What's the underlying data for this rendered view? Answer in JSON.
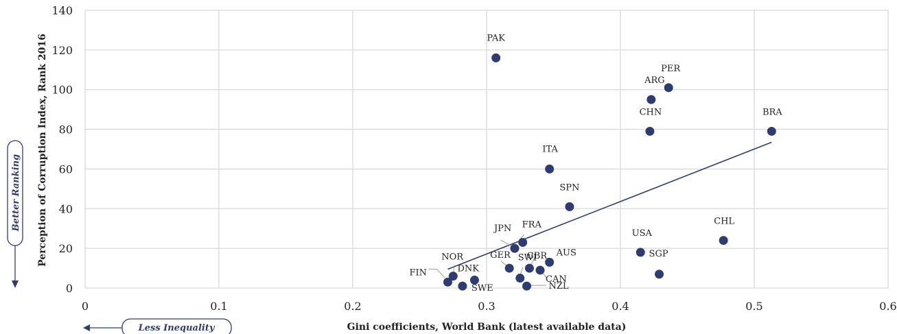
{
  "chart_data": {
    "type": "scatter",
    "xlabel": "Gini coefficients, World Bank (latest available data)",
    "ylabel": "Perception of Corruption Index, Rank 2016",
    "xlim": [
      0,
      0.6
    ],
    "ylim": [
      0,
      140
    ],
    "x_ticks": [
      "0",
      "0.1",
      "0.2",
      "0.3",
      "0.4",
      "0.5",
      "0.6"
    ],
    "y_ticks": [
      "0",
      "20",
      "40",
      "60",
      "80",
      "100",
      "120",
      "140"
    ],
    "grid": true,
    "legend": "none",
    "marker_color": "#2d3d74",
    "points": [
      {
        "label": "PAK",
        "x": 0.307,
        "y": 116
      },
      {
        "label": "PER",
        "x": 0.436,
        "y": 101
      },
      {
        "label": "ARG",
        "x": 0.423,
        "y": 95
      },
      {
        "label": "CHN",
        "x": 0.422,
        "y": 79
      },
      {
        "label": "BRA",
        "x": 0.513,
        "y": 79
      },
      {
        "label": "ITA",
        "x": 0.347,
        "y": 60
      },
      {
        "label": "SPN",
        "x": 0.362,
        "y": 41
      },
      {
        "label": "CHL",
        "x": 0.477,
        "y": 24
      },
      {
        "label": "FRA",
        "x": 0.327,
        "y": 23
      },
      {
        "label": "JPN",
        "x": 0.321,
        "y": 20
      },
      {
        "label": "USA",
        "x": 0.415,
        "y": 18
      },
      {
        "label": "AUS",
        "x": 0.347,
        "y": 13
      },
      {
        "label": "GER",
        "x": 0.317,
        "y": 10
      },
      {
        "label": "GBR",
        "x": 0.332,
        "y": 10
      },
      {
        "label": "SWI",
        "x": 0.325,
        "y": 5
      },
      {
        "label": "CAN",
        "x": 0.34,
        "y": 9
      },
      {
        "label": "SGP",
        "x": 0.429,
        "y": 7
      },
      {
        "label": "NOR",
        "x": 0.275,
        "y": 6
      },
      {
        "label": "DNK",
        "x": 0.291,
        "y": 4
      },
      {
        "label": "FIN",
        "x": 0.271,
        "y": 3
      },
      {
        "label": "SWE",
        "x": 0.282,
        "y": 1
      },
      {
        "label": "NZL",
        "x": 0.33,
        "y": 1
      }
    ],
    "trendline": {
      "x": [
        0.271,
        0.513
      ],
      "y": [
        9.5,
        73.5
      ]
    }
  },
  "callouts": {
    "y_direction": "Better Ranking",
    "x_direction": "Less Inequality"
  }
}
